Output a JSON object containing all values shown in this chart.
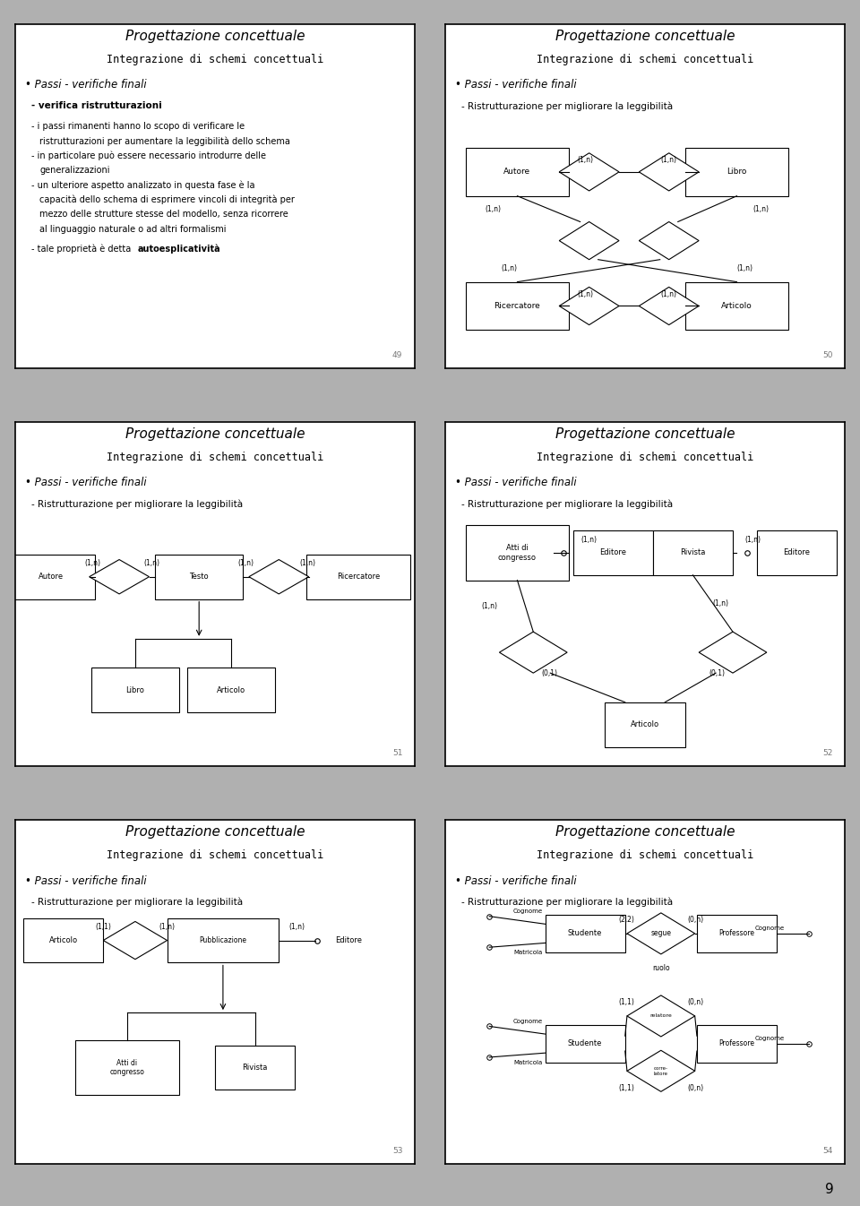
{
  "bg_color": "#ffffff",
  "slide_border": "#000000",
  "page_bg": "#cccccc",
  "title1": "Progettazione concettuale",
  "title2": "Integrazione di schemi concettuali",
  "bullet1": "• Passi - verifiche finali",
  "sub2": "- Ristrutturazione per migliorare la leggibilità",
  "pages": [
    "49",
    "50",
    "51",
    "52",
    "53",
    "54"
  ],
  "page_number": "9"
}
